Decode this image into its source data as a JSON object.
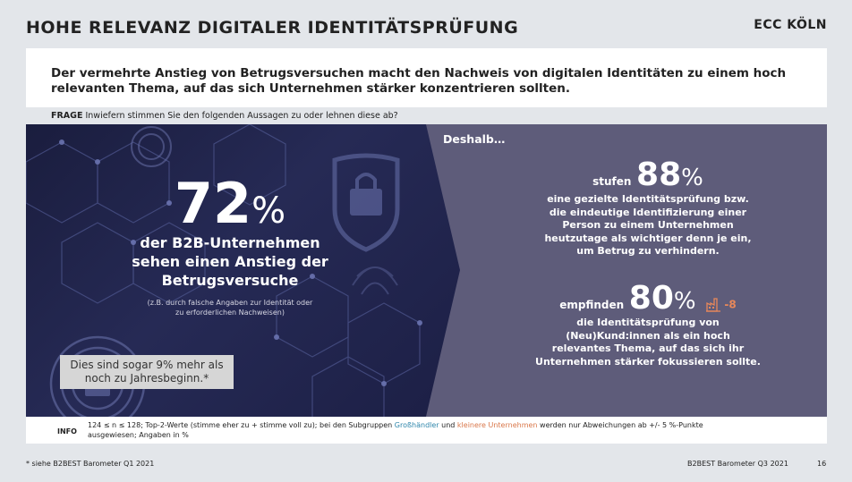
{
  "header": {
    "title": "HOHE RELEVANZ DIGITALER IDENTITÄTSPRÜFUNG",
    "logo": "ECC KÖLN"
  },
  "lead": "Der vermehrte Anstieg von Betrugsversuchen macht den Nachweis von digitalen Identitäten zu einem hoch relevanten Thema, auf das sich Unternehmen stärker konzentrieren sollten.",
  "question": {
    "label": "FRAGE",
    "text": "Inwiefern stimmen Sie den folgenden Aussagen zu oder lehnen diese ab?"
  },
  "left": {
    "number": "72",
    "percent": "%",
    "statement_lines": [
      "der B2B-Unternehmen",
      "sehen einen Anstieg der",
      "Betrugsversuche"
    ],
    "note_lines": [
      "(z.B. durch falsche Angaben zur Identität oder",
      "zu erforderlichen Nachweisen)"
    ],
    "callout_lines": [
      "Dies sind sogar 9% mehr als",
      "noch zu Jahresbeginn.*"
    ]
  },
  "right": {
    "heading": "Deshalb…",
    "stat1": {
      "verb": "stufen",
      "number": "88",
      "percent": "%",
      "desc_lines": [
        "eine gezielte Identitätsprüfung bzw.",
        "die eindeutige Identifizierung einer",
        "Person zu einem Unternehmen",
        "heutzutage als wichtiger denn je ein,",
        "um Betrug zu verhindern."
      ]
    },
    "stat2": {
      "verb": "empfinden",
      "number": "80",
      "percent": "%",
      "delta": "-8",
      "delta_icon": "factory-icon",
      "desc_lines": [
        "die Identitätsprüfung von",
        "(Neu)Kund:innen als ein hoch",
        "relevantes Thema, auf das sich ihr",
        "Unternehmen stärker fokussieren sollte."
      ]
    }
  },
  "info": {
    "label": "INFO",
    "text_part1": "124 ≤ n ≤ 128; Top-2-Werte (stimme eher zu + stimme voll zu); bei den Subgruppen",
    "group1": "Großhändler",
    "and": "und",
    "group2": "kleinere Unternehmen",
    "text_part2": "werden nur Abweichungen ab +/- 5 %-Punkte",
    "line2": "ausgewiesen; Angaben in %"
  },
  "footer": {
    "footnote": "* siehe B2BEST Barometer Q1 2021",
    "source": "B2BEST Barometer Q3 2021",
    "page": "16"
  },
  "colors": {
    "panel": "#5e5c7a",
    "dark": "#1a1d3e",
    "group1": "#2e86ab",
    "group2": "#d9774a"
  }
}
